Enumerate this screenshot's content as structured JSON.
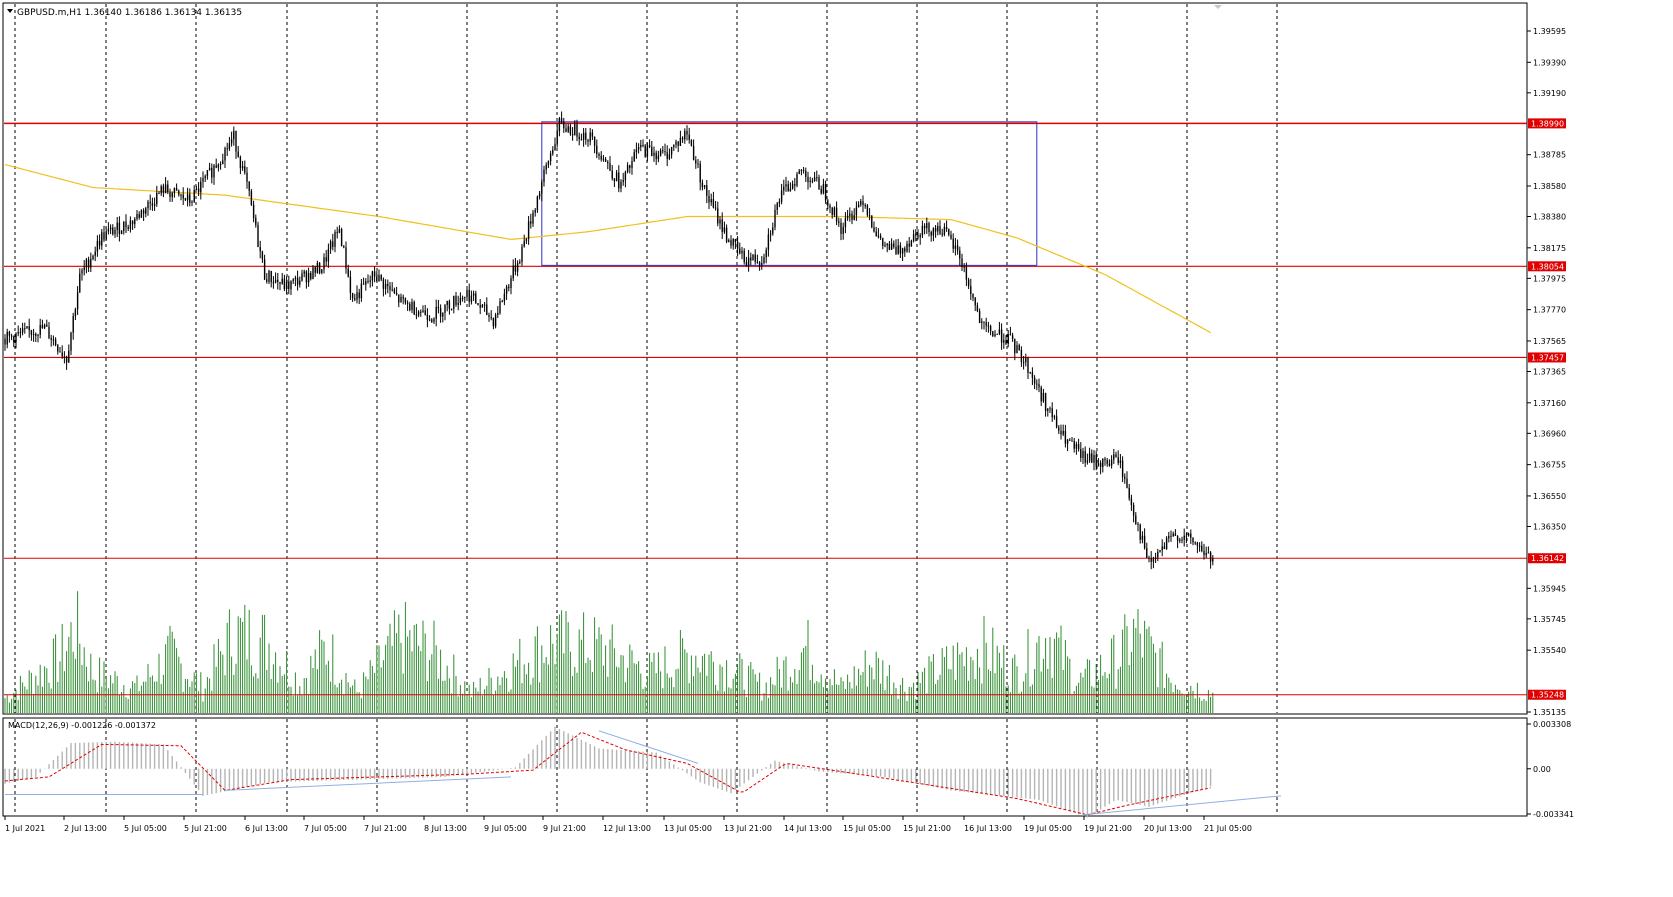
{
  "main_chart": {
    "symbol_header": "GBPUSD.m,H1  1.36140 1.36186 1.36134 1.36135",
    "price_ticks": [
      "1.39595",
      "1.39390",
      "1.39190",
      "1.38785",
      "1.38580",
      "1.38380",
      "1.38175",
      "1.37975",
      "1.37770",
      "1.37565",
      "1.37365",
      "1.37160",
      "1.36960",
      "1.36755",
      "1.36550",
      "1.36350",
      "1.35945",
      "1.35745",
      "1.35540",
      "1.35135"
    ],
    "level_lines": [
      {
        "price": 1.3899,
        "label": "1.38990"
      },
      {
        "price": 1.38054,
        "label": "1.38054"
      },
      {
        "price": 1.37457,
        "label": "1.37457"
      },
      {
        "price": 1.36142,
        "label": "1.36142"
      },
      {
        "price": 1.35248,
        "label": "1.35248"
      }
    ],
    "range_box": {
      "top_price": 1.39,
      "bottom_price": 1.3806
    }
  },
  "macd_panel": {
    "title": "MACD(12,26,9) -0.001226 -0.001372",
    "ticks": [
      "0.003308",
      "0.00",
      "-0.003341"
    ]
  },
  "time_axis": [
    "1 Jul 2021",
    "2 Jul 13:00",
    "5 Jul 05:00",
    "5 Jul 21:00",
    "6 Jul 13:00",
    "7 Jul 05:00",
    "7 Jul 21:00",
    "8 Jul 13:00",
    "9 Jul 05:00",
    "9 Jul 21:00",
    "12 Jul 13:00",
    "13 Jul 05:00",
    "13 Jul 21:00",
    "14 Jul 13:00",
    "15 Jul 05:00",
    "15 Jul 21:00",
    "16 Jul 13:00",
    "19 Jul 05:00",
    "19 Jul 21:00",
    "20 Jul 13:00",
    "21 Jul 05:00"
  ],
  "colors": {
    "level_line": "#e00000",
    "candle": "#000000",
    "moving_average": "#f0c020",
    "range_box": "#3030c0",
    "volume": "#2e8b2e",
    "macd_histogram": "#b4b4b4",
    "macd_signal": "#e00000",
    "trend_line": "#8fb0e0"
  },
  "chart_data": {
    "type": "candlestick",
    "symbol": "GBPUSD.m",
    "timeframe": "H1",
    "last_bar": {
      "open": 1.3614,
      "high": 1.36186,
      "low": 1.36134,
      "close": 1.36135
    },
    "close_path_anchors": [
      [
        0,
        1.3758
      ],
      [
        18,
        1.3765
      ],
      [
        28,
        1.3745
      ],
      [
        34,
        1.3798
      ],
      [
        44,
        1.3825
      ],
      [
        58,
        1.3835
      ],
      [
        72,
        1.3856
      ],
      [
        84,
        1.3848
      ],
      [
        94,
        1.3868
      ],
      [
        104,
        1.389
      ],
      [
        110,
        1.3858
      ],
      [
        118,
        1.38
      ],
      [
        128,
        1.3792
      ],
      [
        144,
        1.3805
      ],
      [
        152,
        1.383
      ],
      [
        158,
        1.3783
      ],
      [
        168,
        1.38
      ],
      [
        180,
        1.3782
      ],
      [
        194,
        1.3773
      ],
      [
        210,
        1.3788
      ],
      [
        222,
        1.377
      ],
      [
        234,
        1.3812
      ],
      [
        244,
        1.386
      ],
      [
        252,
        1.3898
      ],
      [
        266,
        1.389
      ],
      [
        280,
        1.3858
      ],
      [
        288,
        1.3883
      ],
      [
        300,
        1.3878
      ],
      [
        310,
        1.3893
      ],
      [
        318,
        1.3855
      ],
      [
        328,
        1.3825
      ],
      [
        336,
        1.381
      ],
      [
        344,
        1.381
      ],
      [
        352,
        1.385
      ],
      [
        362,
        1.3868
      ],
      [
        372,
        1.3856
      ],
      [
        380,
        1.383
      ],
      [
        390,
        1.385
      ],
      [
        398,
        1.382
      ],
      [
        406,
        1.3815
      ],
      [
        416,
        1.383
      ],
      [
        426,
        1.383
      ],
      [
        434,
        1.3812
      ],
      [
        444,
        1.3765
      ],
      [
        456,
        1.3758
      ],
      [
        464,
        1.3742
      ],
      [
        472,
        1.3718
      ],
      [
        480,
        1.3695
      ],
      [
        490,
        1.368
      ],
      [
        500,
        1.3676
      ],
      [
        506,
        1.368
      ],
      [
        512,
        1.365
      ],
      [
        520,
        1.361
      ],
      [
        532,
        1.363
      ],
      [
        540,
        1.3625
      ],
      [
        548,
        1.3614
      ]
    ],
    "moving_average_anchors": [
      [
        0,
        1.3872
      ],
      [
        40,
        1.3857
      ],
      [
        100,
        1.3852
      ],
      [
        170,
        1.3838
      ],
      [
        230,
        1.3823
      ],
      [
        265,
        1.3828
      ],
      [
        310,
        1.3838
      ],
      [
        380,
        1.3838
      ],
      [
        430,
        1.3836
      ],
      [
        460,
        1.3824
      ],
      [
        500,
        1.38
      ],
      [
        548,
        1.3762
      ]
    ],
    "volume_anchors": [
      [
        0,
        6
      ],
      [
        25,
        22
      ],
      [
        32,
        34
      ],
      [
        40,
        16
      ],
      [
        60,
        10
      ],
      [
        75,
        23
      ],
      [
        90,
        10
      ],
      [
        104,
        32
      ],
      [
        120,
        28
      ],
      [
        134,
        12
      ],
      [
        146,
        26
      ],
      [
        160,
        8
      ],
      [
        180,
        30
      ],
      [
        195,
        24
      ],
      [
        212,
        8
      ],
      [
        240,
        24
      ],
      [
        248,
        28
      ],
      [
        270,
        26
      ],
      [
        294,
        16
      ],
      [
        312,
        24
      ],
      [
        330,
        18
      ],
      [
        345,
        10
      ],
      [
        364,
        26
      ],
      [
        380,
        10
      ],
      [
        394,
        20
      ],
      [
        410,
        10
      ],
      [
        430,
        20
      ],
      [
        444,
        26
      ],
      [
        460,
        16
      ],
      [
        474,
        32
      ],
      [
        488,
        12
      ],
      [
        506,
        22
      ],
      [
        514,
        32
      ],
      [
        530,
        14
      ],
      [
        548,
        8
      ]
    ],
    "macd_anchors": [
      [
        0,
        -0.0011
      ],
      [
        14,
        -0.0006
      ],
      [
        30,
        0.0019
      ],
      [
        50,
        0.002
      ],
      [
        72,
        0.0018
      ],
      [
        90,
        -0.002
      ],
      [
        120,
        -0.001
      ],
      [
        160,
        -0.0008
      ],
      [
        200,
        -0.0006
      ],
      [
        232,
        0.0001
      ],
      [
        250,
        0.0031
      ],
      [
        270,
        0.0015
      ],
      [
        296,
        0.0012
      ],
      [
        316,
        -0.001
      ],
      [
        330,
        -0.0018
      ],
      [
        350,
        0.0006
      ],
      [
        370,
        -0.0002
      ],
      [
        400,
        -0.0006
      ],
      [
        430,
        -0.0016
      ],
      [
        470,
        -0.0023
      ],
      [
        492,
        -0.0036
      ],
      [
        505,
        -0.0023
      ],
      [
        520,
        -0.0028
      ],
      [
        548,
        -0.0013
      ]
    ],
    "signal_anchors": [
      [
        0,
        -0.0009
      ],
      [
        20,
        -0.0006
      ],
      [
        44,
        0.0018
      ],
      [
        80,
        0.0017
      ],
      [
        100,
        -0.0016
      ],
      [
        130,
        -0.0008
      ],
      [
        170,
        -0.0006
      ],
      [
        210,
        -0.0004
      ],
      [
        240,
        -0.0001
      ],
      [
        262,
        0.0027
      ],
      [
        282,
        0.0014
      ],
      [
        310,
        0.0004
      ],
      [
        335,
        -0.0018
      ],
      [
        355,
        0.0004
      ],
      [
        380,
        -0.0002
      ],
      [
        420,
        -0.0012
      ],
      [
        460,
        -0.0022
      ],
      [
        492,
        -0.0034
      ],
      [
        510,
        -0.0027
      ],
      [
        548,
        -0.0014
      ]
    ],
    "macd_trendlines": [
      [
        [
          0,
          -0.0019
        ],
        [
          90,
          -0.0019
        ]
      ],
      [
        [
          100,
          -0.0016
        ],
        [
          230,
          -0.0006
        ]
      ],
      [
        [
          270,
          0.0028
        ],
        [
          315,
          0.0004
        ]
      ],
      [
        [
          490,
          -0.0034
        ],
        [
          580,
          -0.002
        ]
      ]
    ]
  }
}
